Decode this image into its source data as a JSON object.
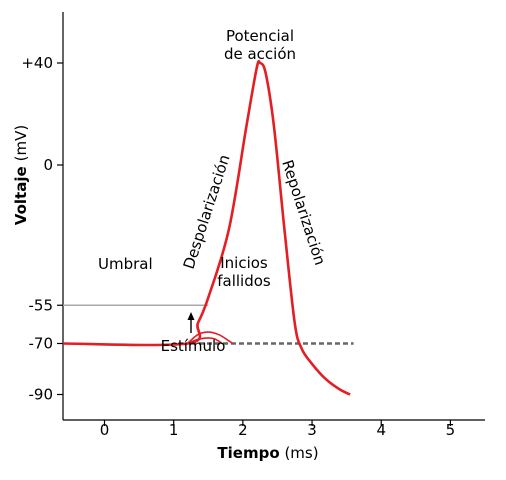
{
  "chart_data": {
    "type": "line",
    "xlabel_bold": "Tiempo",
    "xlabel_unit": "(ms)",
    "ylabel_bold": "Voltaje",
    "ylabel_unit": "(mV)",
    "x_ticks": [
      0,
      1,
      2,
      3,
      4,
      5
    ],
    "y_tick_labels": [
      {
        "value": 40,
        "label": "+40"
      },
      {
        "value": 0,
        "label": "0"
      },
      {
        "value": -55,
        "label": "-55"
      },
      {
        "value": -70,
        "label": "-70"
      },
      {
        "value": -90,
        "label": "-90"
      }
    ],
    "xlim": [
      -0.6,
      5.5
    ],
    "ylim": [
      -100,
      60
    ],
    "grid": false,
    "colors": {
      "action_potential": "#e31e24",
      "threshold": "#aaaaaa",
      "resting_dashed": "#666666"
    },
    "action_potential": [
      {
        "x": -0.6,
        "y": -70
      },
      {
        "x": 1.2,
        "y": -70
      },
      {
        "x": 1.35,
        "y": -62
      },
      {
        "x": 1.5,
        "y": -52
      },
      {
        "x": 1.8,
        "y": -25
      },
      {
        "x": 2.05,
        "y": 15
      },
      {
        "x": 2.2,
        "y": 38
      },
      {
        "x": 2.25,
        "y": 40
      },
      {
        "x": 2.33,
        "y": 36
      },
      {
        "x": 2.45,
        "y": 15
      },
      {
        "x": 2.6,
        "y": -25
      },
      {
        "x": 2.75,
        "y": -62
      },
      {
        "x": 2.85,
        "y": -72
      },
      {
        "x": 3.0,
        "y": -78
      },
      {
        "x": 3.2,
        "y": -84
      },
      {
        "x": 3.4,
        "y": -88
      },
      {
        "x": 3.55,
        "y": -90
      }
    ],
    "failed_initiation_1": [
      {
        "x": 1.2,
        "y": -70
      },
      {
        "x": 1.35,
        "y": -66.5
      },
      {
        "x": 1.5,
        "y": -65.5
      },
      {
        "x": 1.65,
        "y": -66.5
      },
      {
        "x": 1.8,
        "y": -69
      },
      {
        "x": 1.85,
        "y": -70
      }
    ],
    "failed_initiation_2": [
      {
        "x": 1.2,
        "y": -70
      },
      {
        "x": 1.35,
        "y": -68.4
      },
      {
        "x": 1.5,
        "y": -67.8
      },
      {
        "x": 1.6,
        "y": -68.3
      },
      {
        "x": 1.7,
        "y": -70
      }
    ],
    "threshold": {
      "y": -55,
      "x": [
        -0.6,
        1.5
      ]
    },
    "resting_dashed": {
      "y": -70,
      "x": [
        1.25,
        3.6
      ]
    },
    "annotations": {
      "peak_line1": "Potencial",
      "peak_line2": "de acción",
      "depolarization": "Despolarización",
      "repolarization": "Repolarización",
      "threshold": "Umbral",
      "failed_line1": "Inicios",
      "failed_line2": "fallidos",
      "stimulus": "Estímulo"
    }
  }
}
